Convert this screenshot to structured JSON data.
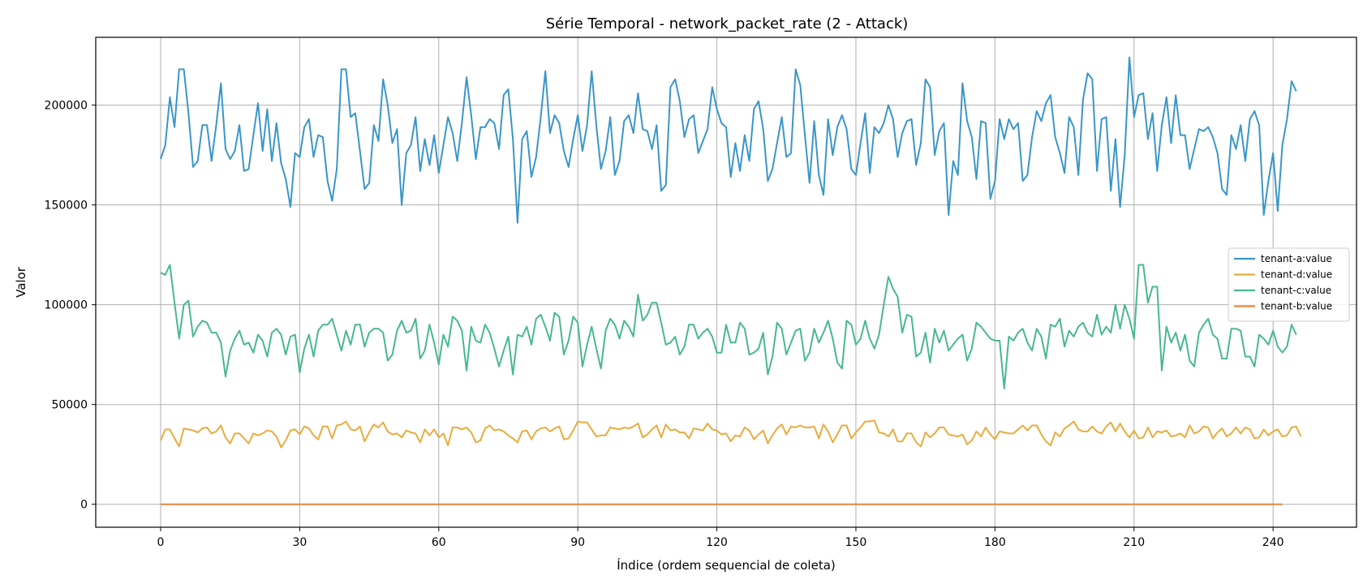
{
  "chart_data": {
    "type": "line",
    "title": "Série Temporal - network_packet_rate (2 - Attack)",
    "xlabel": "Índice (ordem sequencial de coleta)",
    "ylabel": "Valor",
    "xlim": [
      -14,
      258
    ],
    "ylim": [
      -11500,
      234000
    ],
    "xticks": [
      "0",
      "30",
      "60",
      "90",
      "120",
      "150",
      "180",
      "210",
      "240"
    ],
    "yticks": [
      "0",
      "50000",
      "100000",
      "150000",
      "200000"
    ],
    "grid": true,
    "legend_position": "center-right",
    "series": [
      {
        "name": "tenant-a:value",
        "color": "#3a96c8",
        "values": [
          173000,
          180000,
          204000,
          189000,
          218000,
          218000,
          196000,
          169000,
          172000,
          190000,
          190000,
          172000,
          190000,
          211000,
          178000,
          173000,
          177000,
          190000,
          167000,
          168000,
          185000,
          201000,
          177000,
          198000,
          172000,
          191000,
          171000,
          163000,
          149000,
          176000,
          174000,
          189000,
          193000,
          174000,
          185000,
          184000,
          162000,
          152000,
          168000,
          218000,
          218000,
          194000,
          196000,
          177000,
          158000,
          161000,
          190000,
          182000,
          213000,
          200000,
          181000,
          188000,
          150000,
          176000,
          180000,
          194000,
          167000,
          183000,
          170000,
          185000,
          166000,
          180000,
          194000,
          186000,
          172000,
          191000,
          214000,
          195000,
          173000,
          189000,
          189000,
          193000,
          191000,
          178000,
          205000,
          208000,
          183000,
          141000,
          183000,
          187000,
          164000,
          174000,
          194000,
          217000,
          186000,
          195000,
          191000,
          177000,
          169000,
          183000,
          195000,
          177000,
          190000,
          217000,
          190000,
          168000,
          177000,
          194000,
          165000,
          172000,
          192000,
          195000,
          186000,
          206000,
          188000,
          187000,
          178000,
          190000,
          157000,
          160000,
          209000,
          213000,
          202000,
          184000,
          193000,
          195000,
          176000,
          182000,
          188000,
          209000,
          198000,
          191000,
          189000,
          164000,
          181000,
          167000,
          185000,
          172000,
          198000,
          202000,
          188000,
          162000,
          168000,
          181000,
          194000,
          174000,
          176000,
          218000,
          210000,
          185000,
          161000,
          192000,
          165000,
          155000,
          193000,
          175000,
          189000,
          195000,
          188000,
          168000,
          165000,
          181000,
          196000,
          166000,
          189000,
          186000,
          191000,
          200000,
          193000,
          174000,
          186000,
          192000,
          193000,
          170000,
          181000,
          213000,
          209000,
          175000,
          187000,
          191000,
          145000,
          172000,
          165000,
          211000,
          192000,
          184000,
          163000,
          192000,
          191000,
          153000,
          162000,
          193000,
          183000,
          193000,
          188000,
          191000,
          162000,
          165000,
          184000,
          197000,
          192000,
          201000,
          205000,
          184000,
          176000,
          166000,
          194000,
          189000,
          165000,
          203000,
          216000,
          213000,
          167000,
          193000,
          194000,
          157000,
          183000,
          149000,
          175000,
          224000,
          194000,
          205000,
          206000,
          183000,
          196000,
          167000,
          190000,
          204000,
          181000,
          205000,
          185000,
          185000,
          168000,
          178000,
          188000,
          187000,
          189000,
          184000,
          176000,
          158000,
          155000,
          185000,
          178000,
          190000,
          172000,
          193000,
          197000,
          190000,
          145000,
          162000,
          176000,
          147000,
          180000,
          193000,
          212000,
          207000
        ]
      },
      {
        "name": "tenant-d:value",
        "color": "#e8ac3e",
        "values": [
          32000,
          37500,
          37500,
          33000,
          29000,
          38000,
          37500,
          37000,
          36000,
          38000,
          38500,
          35500,
          36500,
          39500,
          33500,
          30500,
          35500,
          35500,
          33000,
          30500,
          35500,
          34500,
          35500,
          37000,
          36500,
          34000,
          28500,
          32000,
          37000,
          37500,
          35000,
          39000,
          38000,
          34500,
          32500,
          39000,
          39000,
          33000,
          39500,
          40000,
          41500,
          37500,
          37000,
          39000,
          31500,
          36000,
          40000,
          38500,
          41000,
          36500,
          35000,
          35500,
          33500,
          37000,
          36000,
          35500,
          31000,
          37500,
          34500,
          37500,
          33500,
          35500,
          29500,
          38500,
          38500,
          37500,
          38500,
          36000,
          31000,
          32000,
          38000,
          39500,
          37000,
          37500,
          36500,
          34500,
          33000,
          31000,
          36500,
          37000,
          32500,
          36500,
          38000,
          38500,
          36500,
          38000,
          39000,
          32500,
          33000,
          37000,
          41500,
          41000,
          41000,
          37500,
          34000,
          34500,
          34500,
          38500,
          38000,
          37500,
          38500,
          38000,
          39000,
          40500,
          33500,
          35000,
          37500,
          39500,
          33500,
          40000,
          37000,
          37500,
          36000,
          36000,
          33000,
          38000,
          37500,
          37000,
          40500,
          37500,
          37000,
          35000,
          35500,
          31500,
          34500,
          34000,
          38500,
          37000,
          32500,
          35000,
          37000,
          30500,
          34500,
          38000,
          40000,
          35000,
          39000,
          38500,
          39500,
          38500,
          38500,
          39000,
          33000,
          40000,
          36500,
          31000,
          35000,
          39500,
          39500,
          33000,
          36000,
          38500,
          41500,
          41500,
          42000,
          36000,
          35500,
          34000,
          37500,
          31500,
          31500,
          35500,
          35500,
          31000,
          29000,
          36000,
          33500,
          35500,
          38500,
          38500,
          35000,
          34500,
          34000,
          35000,
          30000,
          32000,
          36500,
          34000,
          38500,
          35000,
          32500,
          36500,
          36000,
          35500,
          35500,
          37500,
          39500,
          37000,
          39500,
          39500,
          35000,
          31500,
          29500,
          36000,
          34000,
          38000,
          39500,
          41500,
          37500,
          36500,
          36500,
          39000,
          36500,
          35500,
          39000,
          41000,
          36500,
          40500,
          36500,
          33500,
          37000,
          33000,
          33500,
          38500,
          33500,
          36500,
          36000,
          37000,
          34000,
          34500,
          35500,
          33500,
          39500,
          35500,
          36500,
          39000,
          38500,
          33000,
          36000,
          38000,
          34000,
          35500,
          38500,
          35500,
          38500,
          37500,
          33000,
          33500,
          37500,
          34500,
          36500,
          37500,
          34000,
          34500,
          38500,
          39000,
          34000
        ]
      },
      {
        "name": "tenant-c:value",
        "color": "#48b88f",
        "values": [
          116000,
          115000,
          120000,
          101000,
          83000,
          100000,
          102000,
          84000,
          89000,
          92000,
          91000,
          86000,
          86000,
          81000,
          64000,
          77000,
          83000,
          87000,
          80000,
          81000,
          76000,
          85000,
          82000,
          74000,
          86000,
          88000,
          85000,
          75000,
          84000,
          85000,
          66000,
          78000,
          85000,
          74000,
          87000,
          90000,
          90000,
          93000,
          85000,
          77000,
          87000,
          80000,
          90000,
          90000,
          79000,
          86000,
          88000,
          88000,
          86000,
          72000,
          75000,
          87000,
          92000,
          86000,
          87000,
          93000,
          73000,
          77000,
          90000,
          81000,
          70000,
          85000,
          79000,
          94000,
          92000,
          87000,
          67000,
          89000,
          82000,
          81000,
          90000,
          86000,
          78000,
          69000,
          77000,
          84000,
          65000,
          85000,
          84000,
          89000,
          80000,
          93000,
          95000,
          89000,
          82000,
          96000,
          94000,
          75000,
          82000,
          94000,
          91000,
          69000,
          80000,
          89000,
          78000,
          68000,
          87000,
          93000,
          90000,
          83000,
          92000,
          89000,
          84000,
          105000,
          92000,
          95000,
          101000,
          101000,
          91000,
          80000,
          81000,
          84000,
          75000,
          79000,
          90000,
          90000,
          83000,
          86000,
          88000,
          84000,
          76000,
          76000,
          90000,
          81000,
          81000,
          91000,
          88000,
          75000,
          76000,
          78000,
          86000,
          65000,
          74000,
          91000,
          88000,
          75000,
          81000,
          87000,
          88000,
          72000,
          76000,
          88000,
          81000,
          86000,
          92000,
          83000,
          71000,
          68000,
          92000,
          90000,
          80000,
          83000,
          92000,
          83000,
          78000,
          85000,
          100000,
          114000,
          108000,
          104000,
          86000,
          95000,
          94000,
          74000,
          76000,
          86000,
          71000,
          88000,
          81000,
          87000,
          77000,
          80000,
          83000,
          85000,
          72000,
          78000,
          91000,
          89000,
          86000,
          83000,
          82000,
          82000,
          58000,
          84000,
          82000,
          86000,
          88000,
          81000,
          77000,
          88000,
          84000,
          73000,
          90000,
          89000,
          93000,
          79000,
          87000,
          84000,
          89000,
          91000,
          86000,
          84000,
          95000,
          85000,
          89000,
          86000,
          100000,
          88000,
          100000,
          93000,
          83000,
          120000,
          120000,
          101000,
          109000,
          109000,
          67000,
          89000,
          81000,
          86000,
          77000,
          85000,
          72000,
          69000,
          86000,
          90000,
          93000,
          85000,
          83000,
          73000,
          73000,
          88000,
          88000,
          87000,
          74000,
          74000,
          69000,
          85000,
          83000,
          80000,
          87000,
          79000,
          76000,
          79000,
          90000,
          85000
        ]
      },
      {
        "name": "tenant-b:value",
        "color": "#e8843e",
        "values": [
          0,
          0,
          0,
          0,
          0,
          0,
          0,
          0,
          0,
          0,
          0,
          0,
          0,
          0,
          0,
          0,
          0,
          0,
          0,
          0,
          0,
          0,
          0,
          0,
          0,
          0,
          0,
          0,
          0,
          0,
          0,
          0,
          0,
          0,
          0,
          0,
          0,
          0,
          0,
          0,
          0,
          0,
          0,
          0,
          0,
          0,
          0,
          0,
          0,
          0,
          0,
          0,
          0,
          0,
          0,
          0,
          0,
          0,
          0,
          0,
          0,
          0,
          0,
          0,
          0,
          0,
          0,
          0,
          0,
          0,
          0,
          0,
          0,
          0,
          0,
          0,
          0,
          0,
          0,
          0,
          0,
          0,
          0,
          0,
          0,
          0,
          0,
          0,
          0,
          0,
          0,
          0,
          0,
          0,
          0,
          0,
          0,
          0,
          0,
          0,
          0,
          0,
          0,
          0,
          0,
          0,
          0,
          0,
          0,
          0,
          0,
          0,
          0,
          0,
          0,
          0,
          0,
          0,
          0,
          0,
          0,
          0,
          0,
          0,
          0,
          0,
          0,
          0,
          0,
          0,
          0,
          0,
          0,
          0,
          0,
          0,
          0,
          0,
          0,
          0,
          0,
          0,
          0,
          0,
          0,
          0,
          0,
          0,
          0,
          0,
          0,
          0,
          0,
          0,
          0,
          0,
          0,
          0,
          0,
          0,
          0,
          0,
          0,
          0,
          0,
          0,
          0,
          0,
          0,
          0,
          0,
          0,
          0,
          0,
          0,
          0,
          0,
          0,
          0,
          0,
          0,
          0,
          0,
          0,
          0,
          0,
          0,
          0,
          0,
          0,
          0,
          0,
          0,
          0,
          0,
          0,
          0,
          0,
          0,
          0,
          0,
          0,
          0,
          0,
          0,
          0,
          0,
          0,
          0,
          0,
          0,
          0,
          0,
          0,
          0,
          0,
          0,
          0,
          0,
          0,
          0,
          0,
          0,
          0,
          0,
          0,
          0,
          0,
          0,
          0,
          0,
          0,
          0,
          0,
          0,
          0,
          0,
          0,
          0,
          0,
          0,
          0,
          0
        ]
      }
    ]
  }
}
